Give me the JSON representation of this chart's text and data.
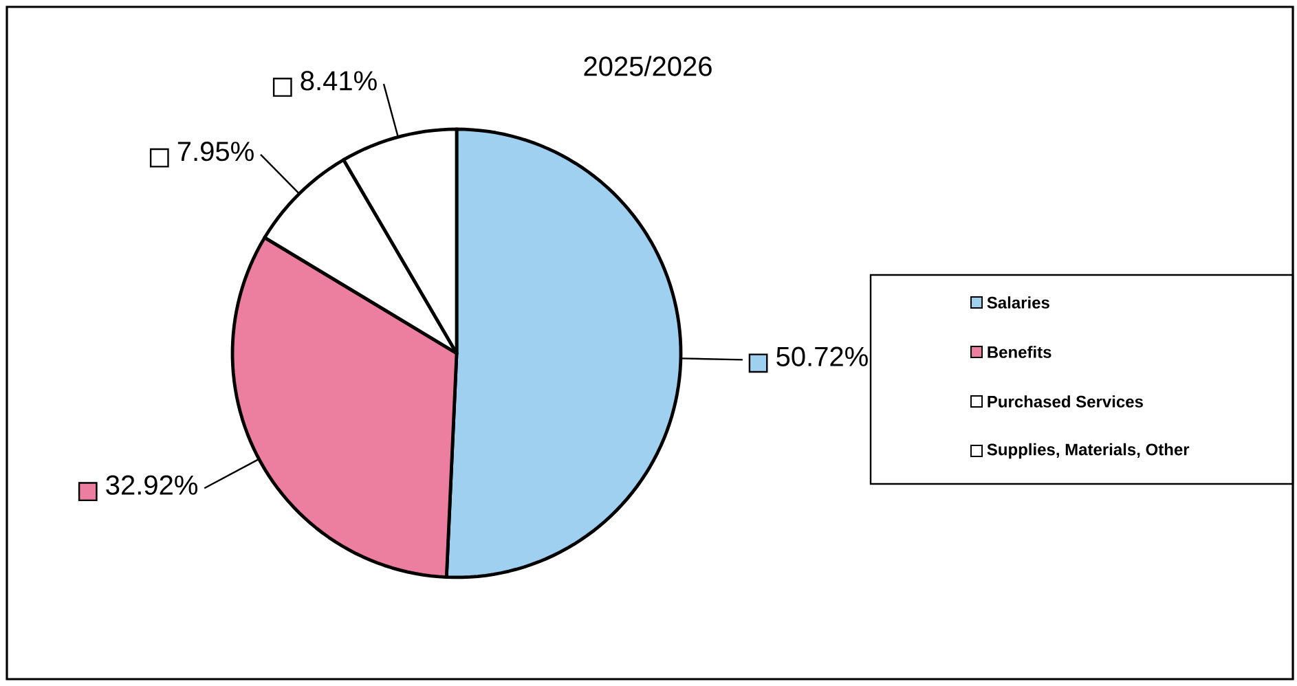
{
  "chart_data": {
    "type": "pie",
    "title": "2025/2026",
    "categories": [
      "Salaries",
      "Benefits",
      "Purchased Services",
      "Supplies, Materials, Other"
    ],
    "values": [
      50.72,
      32.92,
      7.95,
      8.41
    ],
    "colors": [
      "#9fd0f0",
      "#ec7fa0",
      "#ffffff",
      "#ffffff"
    ],
    "value_labels": [
      "50.72%",
      "32.92%",
      "7.95%",
      "8.41%"
    ],
    "legend": "right"
  }
}
